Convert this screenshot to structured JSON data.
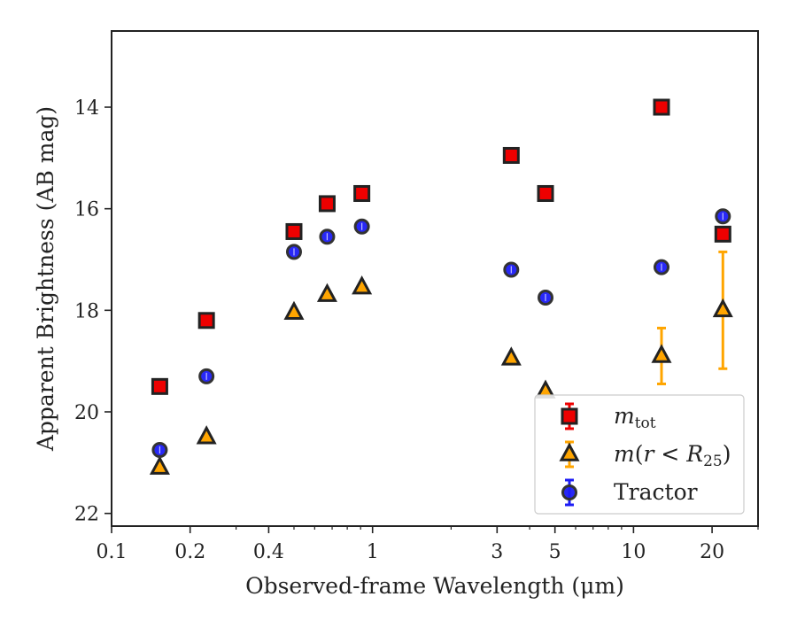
{
  "chart_data": {
    "type": "scatter",
    "title": "",
    "xlabel": "Observed-frame Wavelength (μm)",
    "ylabel": "Apparent Brightness (AB mag)",
    "xscale": "log",
    "xlim": [
      0.1,
      30
    ],
    "ylim": [
      22.25,
      12.5
    ],
    "y_inverted": true,
    "grid": false,
    "legend_position": "lower-right",
    "x_ticks": [
      0.1,
      0.2,
      0.4,
      1,
      3,
      5,
      10,
      20
    ],
    "x_tick_labels": [
      "0.1",
      "0.2",
      "0.4",
      "1",
      "3",
      "5",
      "10",
      "20"
    ],
    "y_ticks": [
      14,
      16,
      18,
      20,
      22
    ],
    "y_tick_labels": [
      "14",
      "16",
      "18",
      "20",
      "22"
    ],
    "series": [
      {
        "name": "m_tot",
        "marker": "square",
        "face_color": "#ee0000",
        "edge_color": "#222222",
        "error_color": "#ee0000",
        "points": [
          {
            "x": 0.153,
            "y": 19.5
          },
          {
            "x": 0.231,
            "y": 18.2
          },
          {
            "x": 0.5,
            "y": 16.45
          },
          {
            "x": 0.67,
            "y": 15.9
          },
          {
            "x": 0.91,
            "y": 15.7
          },
          {
            "x": 3.4,
            "y": 14.95
          },
          {
            "x": 4.6,
            "y": 15.7
          },
          {
            "x": 12.8,
            "y": 14.0
          },
          {
            "x": 22.0,
            "y": 16.5
          }
        ]
      },
      {
        "name": "m(r < R25)",
        "marker": "triangle",
        "face_color": "#ffa500",
        "edge_color": "#222222",
        "error_color": "#ffa500",
        "points": [
          {
            "x": 0.153,
            "y": 21.1
          },
          {
            "x": 0.231,
            "y": 20.5
          },
          {
            "x": 0.5,
            "y": 18.05
          },
          {
            "x": 0.67,
            "y": 17.7
          },
          {
            "x": 0.91,
            "y": 17.55
          },
          {
            "x": 3.4,
            "y": 18.95
          },
          {
            "x": 4.6,
            "y": 19.6
          },
          {
            "x": 12.8,
            "y": 18.9,
            "err_low": 0.55,
            "err_high": 0.55
          },
          {
            "x": 22.0,
            "y": 18.0,
            "err_low": 1.15,
            "err_high": 1.15
          }
        ]
      },
      {
        "name": "Tractor",
        "marker": "circle",
        "face_color": "#1c1cf5",
        "edge_color": "#333333",
        "error_color": "#1c1cf5",
        "points": [
          {
            "x": 0.153,
            "y": 20.75
          },
          {
            "x": 0.231,
            "y": 19.3
          },
          {
            "x": 0.5,
            "y": 16.85
          },
          {
            "x": 0.67,
            "y": 16.55
          },
          {
            "x": 0.91,
            "y": 16.35
          },
          {
            "x": 3.4,
            "y": 17.2
          },
          {
            "x": 4.6,
            "y": 17.75
          },
          {
            "x": 12.8,
            "y": 17.15
          },
          {
            "x": 22.0,
            "y": 16.15
          }
        ]
      }
    ]
  }
}
